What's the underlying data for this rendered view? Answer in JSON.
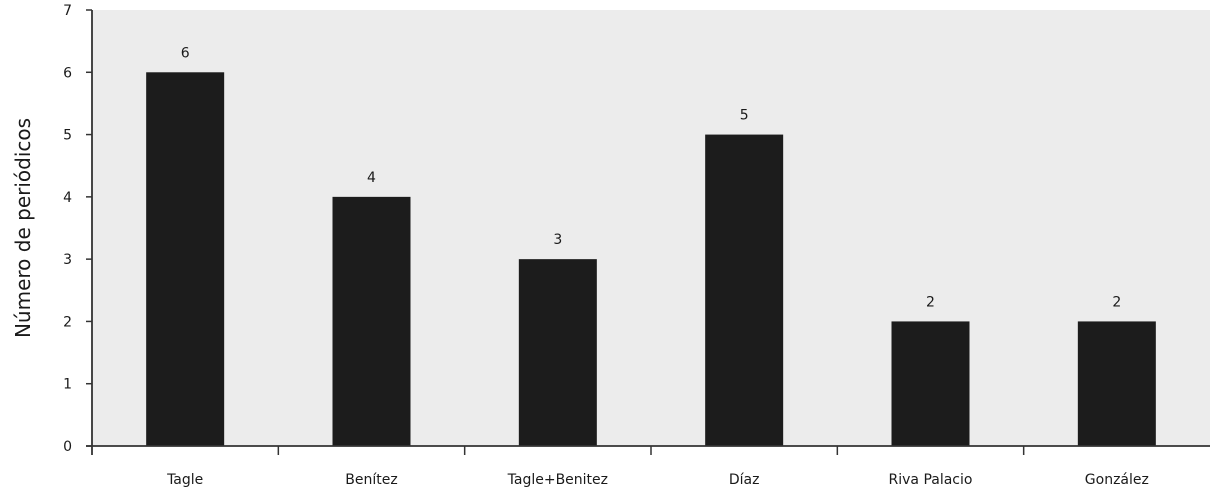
{
  "chart_data": {
    "type": "bar",
    "categories": [
      "Tagle",
      "Benítez",
      "Tagle+Benitez",
      "Díaz",
      "Riva Palacio",
      "González"
    ],
    "values": [
      6,
      4,
      3,
      5,
      2,
      2
    ],
    "ylabel": "Número de periódicos",
    "ylim": [
      0,
      7
    ],
    "yticks": [
      0,
      1,
      2,
      3,
      4,
      5,
      6,
      7
    ],
    "grid": false,
    "colors": {
      "plot_background": "#ececec",
      "bar": "#1c1c1c",
      "axis": "#333333"
    }
  }
}
